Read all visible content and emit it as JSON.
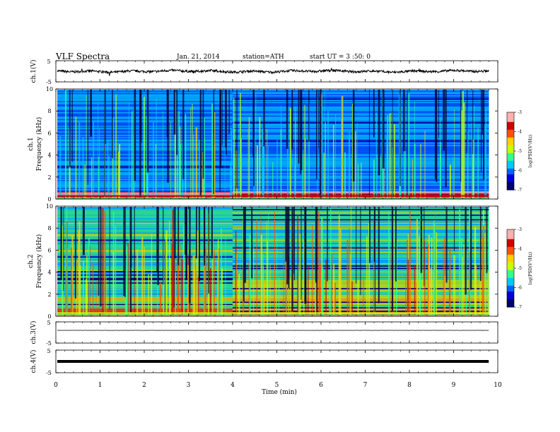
{
  "header": {
    "title": "VLF Spectra",
    "date": "Jan. 21, 2014",
    "station": "station=ATH",
    "start": "start UT = 3 :50: 0"
  },
  "colors": {
    "colormap": [
      "#000070",
      "#0000d8",
      "#0060ff",
      "#00c8ff",
      "#30ff90",
      "#c8ff00",
      "#ffd000",
      "#ff5000",
      "#d00000",
      "#ffb0b0"
    ],
    "trace": "#000000"
  },
  "chart_data": {
    "type": "spectrogram",
    "x": {
      "label": "Time (min)",
      "lim": [
        0,
        10
      ],
      "ticks": [
        "0",
        "1",
        "2",
        "3",
        "4",
        "5",
        "6",
        "7",
        "8",
        "9",
        "10"
      ]
    },
    "panels": [
      {
        "id": "ch1-waveform",
        "ylabel": "ch.1(V)",
        "ylim": [
          -5,
          5
        ],
        "ticks": [
          "5",
          "-5"
        ],
        "level": 0.0,
        "noise": 0.55
      },
      {
        "id": "ch1-spectrogram",
        "ylabel": "ch.1\nFrequency (kHz)",
        "ylim": [
          0,
          10
        ],
        "ticks": [
          "10",
          "8",
          "6",
          "4",
          "2",
          "0"
        ],
        "colorbar": {
          "label": "log(PSD(V²/Hz)",
          "range": [
            -7,
            -3
          ],
          "ticks": [
            "-3",
            "-4",
            "-5",
            "-6",
            "-7"
          ]
        },
        "time_change_min": 4.0
      },
      {
        "id": "ch2-spectrogram",
        "ylabel": "ch.2\nFrequency (kHz)",
        "ylim": [
          0,
          10
        ],
        "ticks": [
          "10",
          "8",
          "6",
          "4",
          "2",
          "0"
        ],
        "colorbar": {
          "label": "log(PSD(V²/Hz)",
          "range": [
            -7,
            -3
          ],
          "ticks": [
            "-3",
            "-4",
            "-5",
            "-6",
            "-7"
          ]
        },
        "time_change_min": 4.0
      },
      {
        "id": "ch3-waveform",
        "ylabel": "ch.3(V)",
        "ylim": [
          -5,
          5
        ],
        "ticks": [
          "5",
          "-5"
        ],
        "level": 1.0,
        "noise": 0.05
      },
      {
        "id": "ch4-waveform",
        "ylabel": "ch.4(V)",
        "ylim": [
          -5,
          5
        ],
        "ticks": [
          "5",
          "-5"
        ],
        "level": 0.0,
        "noise": 0.0,
        "thick": true
      }
    ],
    "data_end_min": 9.8
  }
}
